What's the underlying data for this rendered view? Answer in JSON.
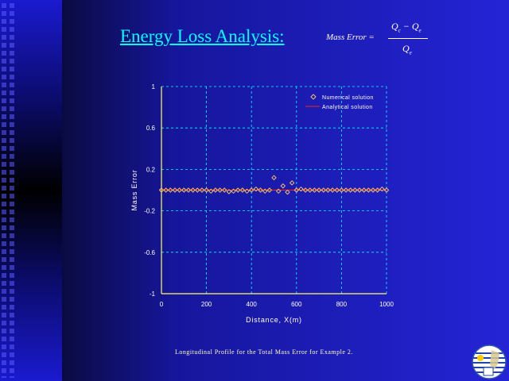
{
  "slide": {
    "title": "Energy Loss Analysis:",
    "formula": {
      "lhs": "Mass Error =",
      "numerator": "Qc − Qe",
      "denominator": "Qe"
    },
    "caption": "Longitudinal Profile for the Total Mass Error for Example 2.",
    "colors": {
      "title": "#00ffff",
      "background": "#2424d6",
      "grid": "#00ffff",
      "numerical": "#ffcc66",
      "analytical": "#ff2020"
    }
  },
  "chart_data": {
    "type": "line",
    "xlabel": "Distance, X(m)",
    "ylabel": "Mass Error",
    "xlim": [
      0,
      1000
    ],
    "ylim": [
      -1,
      1
    ],
    "xticks": [
      0,
      200,
      400,
      600,
      800,
      1000
    ],
    "yticks": [
      1,
      0.6,
      0.2,
      -0.2,
      -0.6,
      -1
    ],
    "xtick_labels": [
      "0",
      "200",
      "400",
      "600",
      "800",
      "1000"
    ],
    "ytick_labels": [
      "1",
      "0.6",
      "0.2",
      "-0.2",
      "-0.6",
      "-1"
    ],
    "grid": true,
    "legend_position": "top-right",
    "series": [
      {
        "name": "Numerical solution",
        "marker": "diamond",
        "x": [
          0,
          20,
          40,
          60,
          80,
          100,
          120,
          140,
          160,
          180,
          200,
          220,
          240,
          260,
          280,
          300,
          320,
          340,
          360,
          380,
          400,
          420,
          440,
          460,
          480,
          500,
          520,
          540,
          560,
          580,
          600,
          620,
          640,
          660,
          680,
          700,
          720,
          740,
          760,
          780,
          800,
          820,
          840,
          860,
          880,
          900,
          920,
          940,
          960,
          980,
          1000
        ],
        "y": [
          0.0,
          0.0,
          0.0,
          0.0,
          0.0,
          0.0,
          0.0,
          0.0,
          0.0,
          0.0,
          0.0,
          -0.01,
          0.0,
          0.0,
          0.0,
          -0.015,
          -0.01,
          0.0,
          0.0,
          -0.01,
          0.0,
          0.01,
          0.0,
          -0.01,
          0.0,
          0.12,
          -0.01,
          0.04,
          -0.02,
          0.07,
          0.0,
          0.01,
          0.0,
          0.0,
          0.0,
          0.0,
          0.0,
          0.0,
          0.0,
          0.0,
          0.0,
          0.0,
          0.0,
          0.0,
          0.0,
          0.0,
          0.0,
          0.0,
          0.0,
          0.01,
          0.0
        ]
      },
      {
        "name": "Analytical solution",
        "marker": "line",
        "x": [
          0,
          1000
        ],
        "y": [
          0,
          0
        ]
      }
    ]
  }
}
